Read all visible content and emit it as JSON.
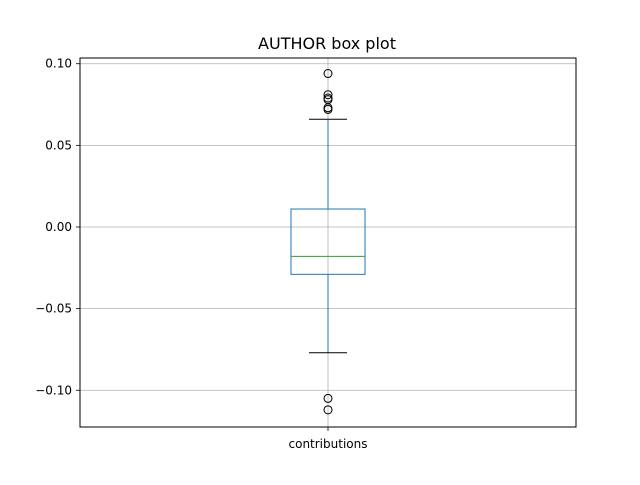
{
  "chart_data": {
    "type": "box",
    "title": "AUTHOR box plot",
    "xlabel": "",
    "ylabel": "",
    "categories": [
      "contributions"
    ],
    "ylim": [
      -0.1225,
      0.1035
    ],
    "yticks": [
      -0.1,
      -0.05,
      0.0,
      0.05,
      0.1
    ],
    "ytick_labels": [
      "−0.10",
      "−0.05",
      "0.00",
      "0.05",
      "0.10"
    ],
    "grid": true,
    "boxes": [
      {
        "name": "contributions",
        "whisker_low": -0.077,
        "q1": -0.029,
        "median": -0.018,
        "q3": 0.011,
        "whisker_high": 0.066,
        "outliers": [
          0.094,
          0.081,
          0.079,
          0.078,
          0.073,
          0.072,
          -0.105,
          -0.112
        ]
      }
    ],
    "colors": {
      "box": "#1f77b4",
      "median": "#2ca02c",
      "caps": "#000000",
      "grid": "#b0b0b0",
      "outlier_edge": "#000000"
    }
  }
}
